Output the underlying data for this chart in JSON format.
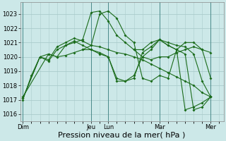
{
  "bg_color": "#cce8e8",
  "grid_color": "#aacccc",
  "line_color": "#1a6b1a",
  "xlabel": "Pression niveau de la mer( hPa )",
  "xlabel_fontsize": 8,
  "ylim": [
    1015.5,
    1023.8
  ],
  "yticks": [
    1016,
    1017,
    1018,
    1019,
    1020,
    1021,
    1022,
    1023
  ],
  "xtick_labels": [
    "Dim",
    "",
    "Jeu",
    "Lun",
    "",
    "Mar",
    "",
    "Mer"
  ],
  "xtick_positions": [
    0,
    4,
    8,
    10,
    13,
    16,
    19,
    22
  ],
  "total_xlim": [
    -0.3,
    23.5
  ],
  "series": [
    {
      "x": [
        0,
        1,
        2,
        3,
        4,
        5,
        6,
        7,
        8,
        9,
        10,
        11,
        12,
        13,
        14,
        15,
        16,
        17,
        18,
        19,
        20,
        21,
        22
      ],
      "y": [
        1017.0,
        1018.7,
        1020.0,
        1020.2,
        1020.0,
        1020.1,
        1020.3,
        1020.5,
        1020.8,
        1020.7,
        1020.5,
        1020.3,
        1020.2,
        1020.0,
        1019.8,
        1019.5,
        1019.2,
        1018.9,
        1018.6,
        1018.3,
        1018.0,
        1017.5,
        1017.2
      ]
    },
    {
      "x": [
        0,
        2,
        3,
        4,
        5,
        6,
        7,
        8,
        9,
        10,
        11,
        12,
        13,
        14,
        15,
        16,
        17,
        18,
        19,
        20,
        21,
        22
      ],
      "y": [
        1017.1,
        1020.0,
        1019.7,
        1020.5,
        1020.8,
        1021.0,
        1021.2,
        1023.1,
        1023.2,
        1022.5,
        1021.5,
        1021.0,
        1020.5,
        1020.0,
        1019.8,
        1020.0,
        1020.0,
        1020.3,
        1020.5,
        1020.7,
        1020.5,
        1020.3
      ]
    },
    {
      "x": [
        0,
        2,
        3,
        4,
        5,
        6,
        7,
        8,
        9,
        10,
        11,
        12,
        13,
        14,
        15,
        16,
        17,
        18,
        19,
        20,
        21,
        22
      ],
      "y": [
        1017.1,
        1020.0,
        1019.8,
        1020.7,
        1021.0,
        1021.3,
        1021.1,
        1020.8,
        1023.0,
        1023.2,
        1022.7,
        1021.5,
        1021.0,
        1018.5,
        1018.3,
        1018.7,
        1018.5,
        1020.5,
        1021.0,
        1021.0,
        1020.5,
        1018.5
      ]
    },
    {
      "x": [
        0,
        3,
        4,
        5,
        6,
        7,
        8,
        9,
        10,
        11,
        12,
        13,
        14,
        15,
        16,
        17,
        18,
        19,
        20,
        21,
        22
      ],
      "y": [
        1017.2,
        1020.2,
        1020.0,
        1020.8,
        1021.1,
        1020.8,
        1020.5,
        1020.3,
        1020.0,
        1018.5,
        1018.3,
        1018.7,
        1020.0,
        1020.5,
        1021.2,
        1021.0,
        1020.8,
        1020.7,
        1020.2,
        1018.3,
        1017.2
      ]
    },
    {
      "x": [
        7,
        8,
        9,
        10,
        11,
        12,
        13,
        14,
        15,
        16,
        17,
        18,
        19,
        20,
        21,
        22
      ],
      "y": [
        1020.5,
        1020.5,
        1020.2,
        1020.0,
        1018.3,
        1018.3,
        1018.5,
        1020.3,
        1020.7,
        1021.2,
        1020.8,
        1020.5,
        1020.2,
        1016.3,
        1016.5,
        1017.2
      ]
    },
    {
      "x": [
        13,
        14,
        15,
        16,
        17,
        18,
        19,
        20,
        21,
        22
      ],
      "y": [
        1020.5,
        1020.5,
        1021.0,
        1021.2,
        1020.8,
        1020.5,
        1016.3,
        1016.5,
        1016.8,
        1017.2
      ]
    }
  ]
}
